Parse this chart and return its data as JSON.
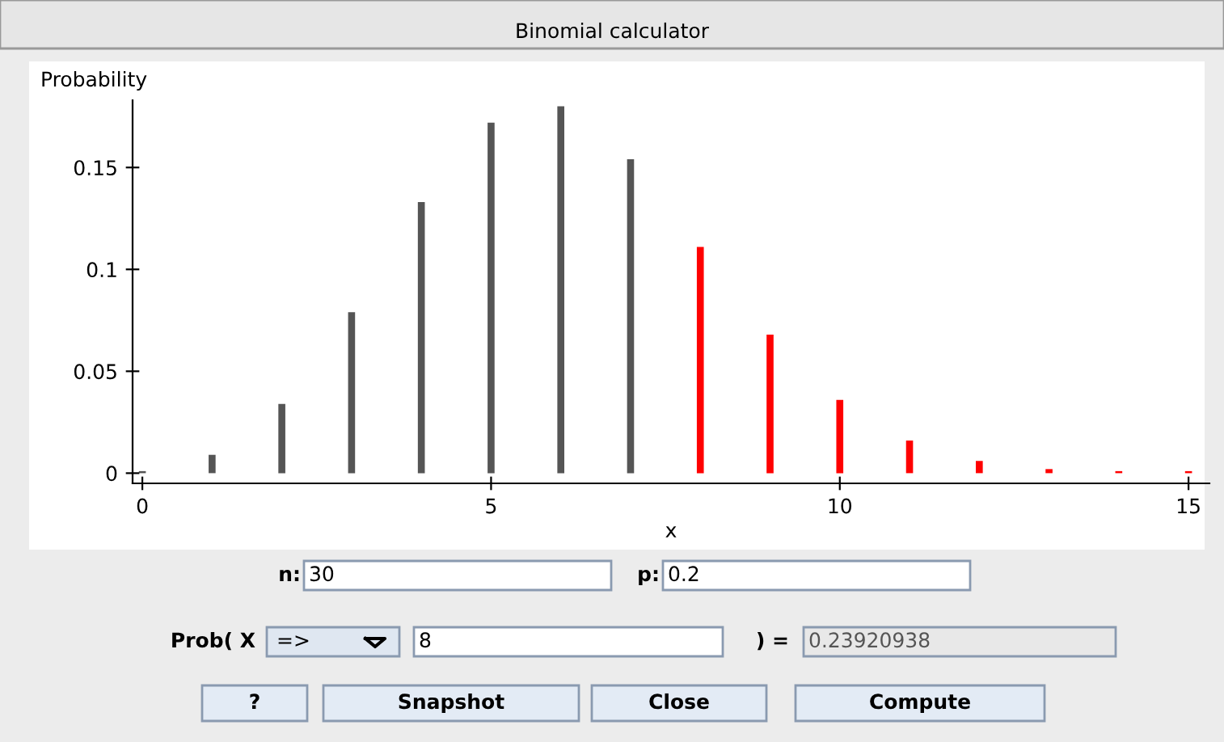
{
  "chart_data": {
    "type": "bar",
    "title": "Binomial calculator",
    "xlabel": "x",
    "ylabel": "Probability",
    "x": [
      0,
      1,
      2,
      3,
      4,
      5,
      6,
      7,
      8,
      9,
      10,
      11,
      12,
      13,
      14,
      15
    ],
    "values": [
      0.001,
      0.009,
      0.034,
      0.079,
      0.133,
      0.172,
      0.18,
      0.154,
      0.111,
      0.068,
      0.036,
      0.016,
      0.006,
      0.002,
      0.001,
      0.001
    ],
    "colors": [
      "#555555",
      "#555555",
      "#555555",
      "#555555",
      "#555555",
      "#555555",
      "#555555",
      "#555555",
      "#ff0000",
      "#ff0000",
      "#ff0000",
      "#ff0000",
      "#ff0000",
      "#ff0000",
      "#ff0000",
      "#ff0000"
    ],
    "xlim": [
      -0.14,
      15.3
    ],
    "xticks": [
      0,
      5,
      10,
      15
    ],
    "ylim": [
      -0.005,
      0.183
    ],
    "yticks": [
      0,
      0.05,
      0.1,
      0.15
    ],
    "grid": false,
    "legend": false,
    "annotations": [
      "n:",
      "30",
      "p:",
      "0.2",
      "Prob( X",
      "=>",
      "8",
      ") =",
      "0.23920938",
      "?",
      "Snapshot",
      "Close",
      "Compute"
    ]
  }
}
